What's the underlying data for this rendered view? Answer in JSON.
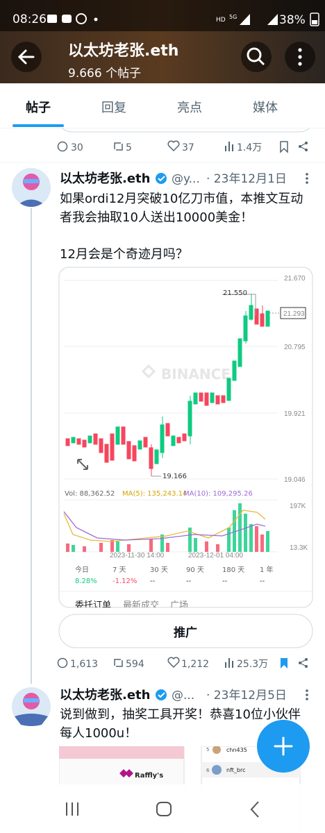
{
  "status_bar": {
    "time": "08:26",
    "network": "HD",
    "signal": "5G",
    "battery": "38%"
  },
  "header": {
    "title": "以太坊老张.eth",
    "post_count": "9.666 个帖子"
  },
  "tabs": [
    "帖子",
    "回复",
    "亮点",
    "媒体"
  ],
  "previous_post": {
    "stats": {
      "replies": "30",
      "reposts": "5",
      "likes": "37",
      "views": "1.4万"
    }
  },
  "posts": [
    {
      "name": "以太坊老张.eth",
      "handle": "@y...",
      "date": "· 23年12月1日",
      "text": [
        "如果ordi12月突破10亿刀市值，本推文互动",
        "者我会抽取10人送出10000美金！",
        "12月会是个奇迹月吗？"
      ],
      "image": {
        "watermark": "BINANCE",
        "price_labels": [
          "21.670",
          "21.293",
          "20.795",
          "19.921",
          "19.046"
        ],
        "high": "21.550",
        "low": "19.166",
        "volume": "Vol: 88,362.52",
        "ma5": "MA(5): 135,243.14",
        "ma10": "MA(10): 109,295.26",
        "volume_labels": [
          "197K",
          "13.3K"
        ],
        "time_labels": [
          "2023-11-30 14:00",
          "2023-12-01 04:00"
        ],
        "periods": [
          {
            "label": "今日",
            "change": "8.28%"
          },
          {
            "label": "7 天",
            "change": "-1.12%"
          },
          {
            "label": "30 天",
            "change": "--"
          },
          {
            "label": "90 天",
            "change": "--"
          },
          {
            "label": "180 天",
            "change": "--"
          },
          {
            "label": "1 年",
            "change": "--"
          }
        ],
        "tabs": [
          "委托订单",
          "最新成交",
          "广场"
        ]
      },
      "button": "推广",
      "stats": {
        "replies": "1,613",
        "reposts": "594",
        "likes": "1,212",
        "views": "25.3万"
      }
    },
    {
      "name": "以太坊老张.eth",
      "handle": "@...",
      "date": "· 23年12月5日",
      "text": [
        "说到做到，抽奖工具开奖！恭喜10位小伙伴",
        "每人1000u！"
      ],
      "image": {
        "brand": "Raffly's",
        "entries": [
          {
            "rank": "5",
            "name": "chn435"
          },
          {
            "rank": "6",
            "name": "nft_brc"
          }
        ]
      }
    }
  ]
}
